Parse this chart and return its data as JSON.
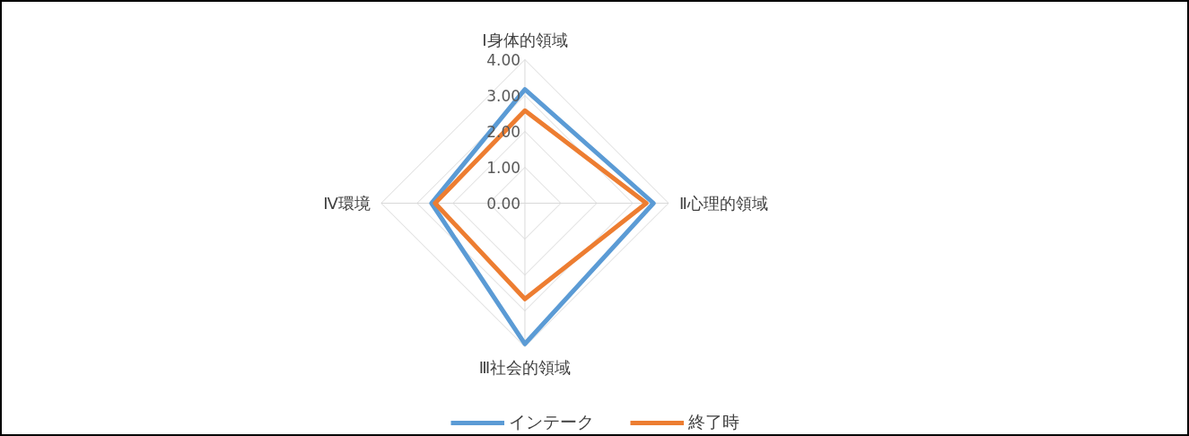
{
  "chart_data": {
    "type": "radar",
    "categories": [
      "Ⅰ身体的領域",
      "Ⅱ心理的領域",
      "Ⅲ社会的領域",
      "Ⅳ環境"
    ],
    "series": [
      {
        "name": "インテーク",
        "color": "#5b9bd5",
        "values": [
          3.17,
          3.58,
          3.92,
          2.6
        ]
      },
      {
        "name": "終了時",
        "color": "#ed7d31",
        "values": [
          2.58,
          3.38,
          2.67,
          2.5
        ]
      }
    ],
    "ylim": [
      0,
      4
    ],
    "yticks": [
      {
        "value": 0,
        "label": "0.00"
      },
      {
        "value": 1,
        "label": "1.00"
      },
      {
        "value": 2,
        "label": "2.00"
      },
      {
        "value": 3,
        "label": "3.00"
      },
      {
        "value": 4,
        "label": "4.00"
      }
    ],
    "grid": true,
    "legend": "bottom",
    "marker": "none",
    "line_style": "solid"
  }
}
